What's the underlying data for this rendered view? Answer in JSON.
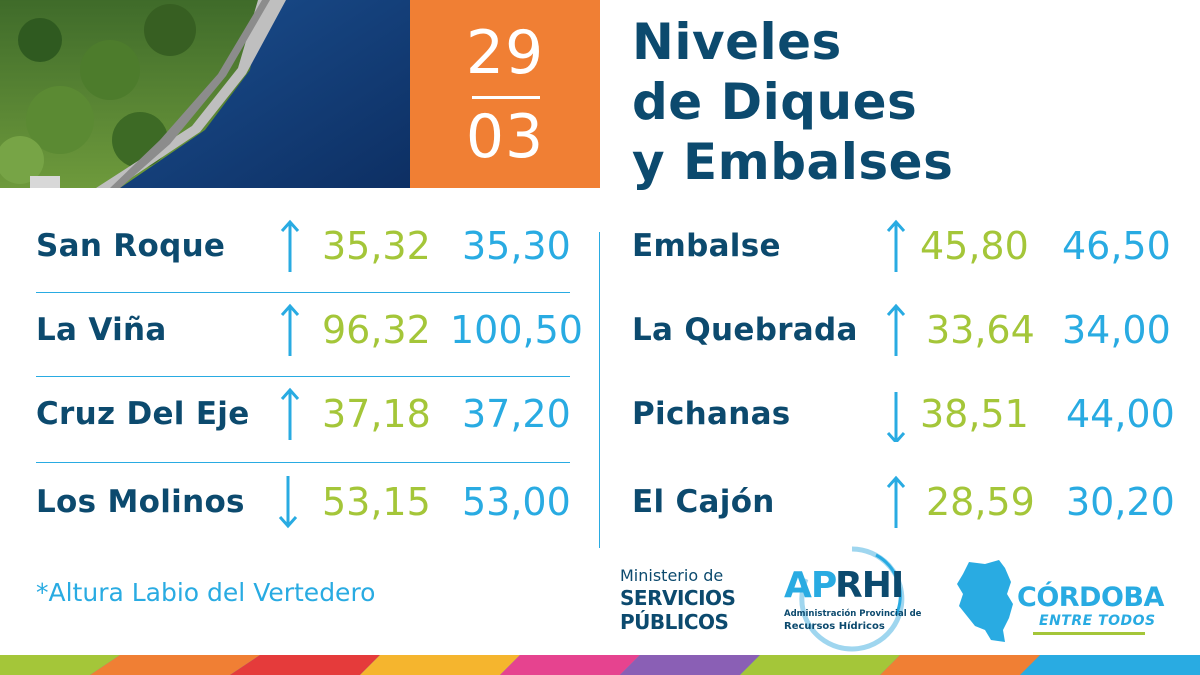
{
  "date": {
    "day": "29",
    "month": "03"
  },
  "title": {
    "line1": "Niveles",
    "line2": "de Diques",
    "line3": "y Embalses"
  },
  "colors": {
    "navy": "#0c4a6e",
    "orange": "#f07f34",
    "green": "#a4c639",
    "blue": "#29abe2"
  },
  "left_column": [
    {
      "name": "San Roque",
      "trend": "up",
      "current": "35,32",
      "target": "35,30"
    },
    {
      "name": "La Viña",
      "trend": "up",
      "current": "96,32",
      "target": "100,50"
    },
    {
      "name": "Cruz Del Eje",
      "trend": "up",
      "current": "37,18",
      "target": "37,20"
    },
    {
      "name": "Los Molinos",
      "trend": "down",
      "current": "53,15",
      "target": "53,00"
    }
  ],
  "right_column": [
    {
      "name": "Embalse",
      "trend": "up",
      "current": "45,80",
      "target": "46,50"
    },
    {
      "name": "La Quebrada",
      "trend": "up",
      "current": "33,64",
      "target": "34,00"
    },
    {
      "name": "Pichanas",
      "trend": "down",
      "current": "38,51",
      "target": "44,00"
    },
    {
      "name": "El Cajón",
      "trend": "up",
      "current": "28,59",
      "target": "30,20"
    }
  ],
  "footnote": "*Altura Labio del Vertedero",
  "logos": {
    "ministerio": {
      "line1": "Ministerio de",
      "line2": "SERVICIOS",
      "line3": "PÚBLICOS"
    },
    "aprhi": {
      "ap": "AP",
      "rhi": "RHI",
      "sub1": "Administración Provincial de",
      "sub2": "Recursos Hídricos"
    },
    "cordoba": {
      "name": "CÓRDOBA",
      "tagline": "ENTRE TODOS"
    }
  }
}
